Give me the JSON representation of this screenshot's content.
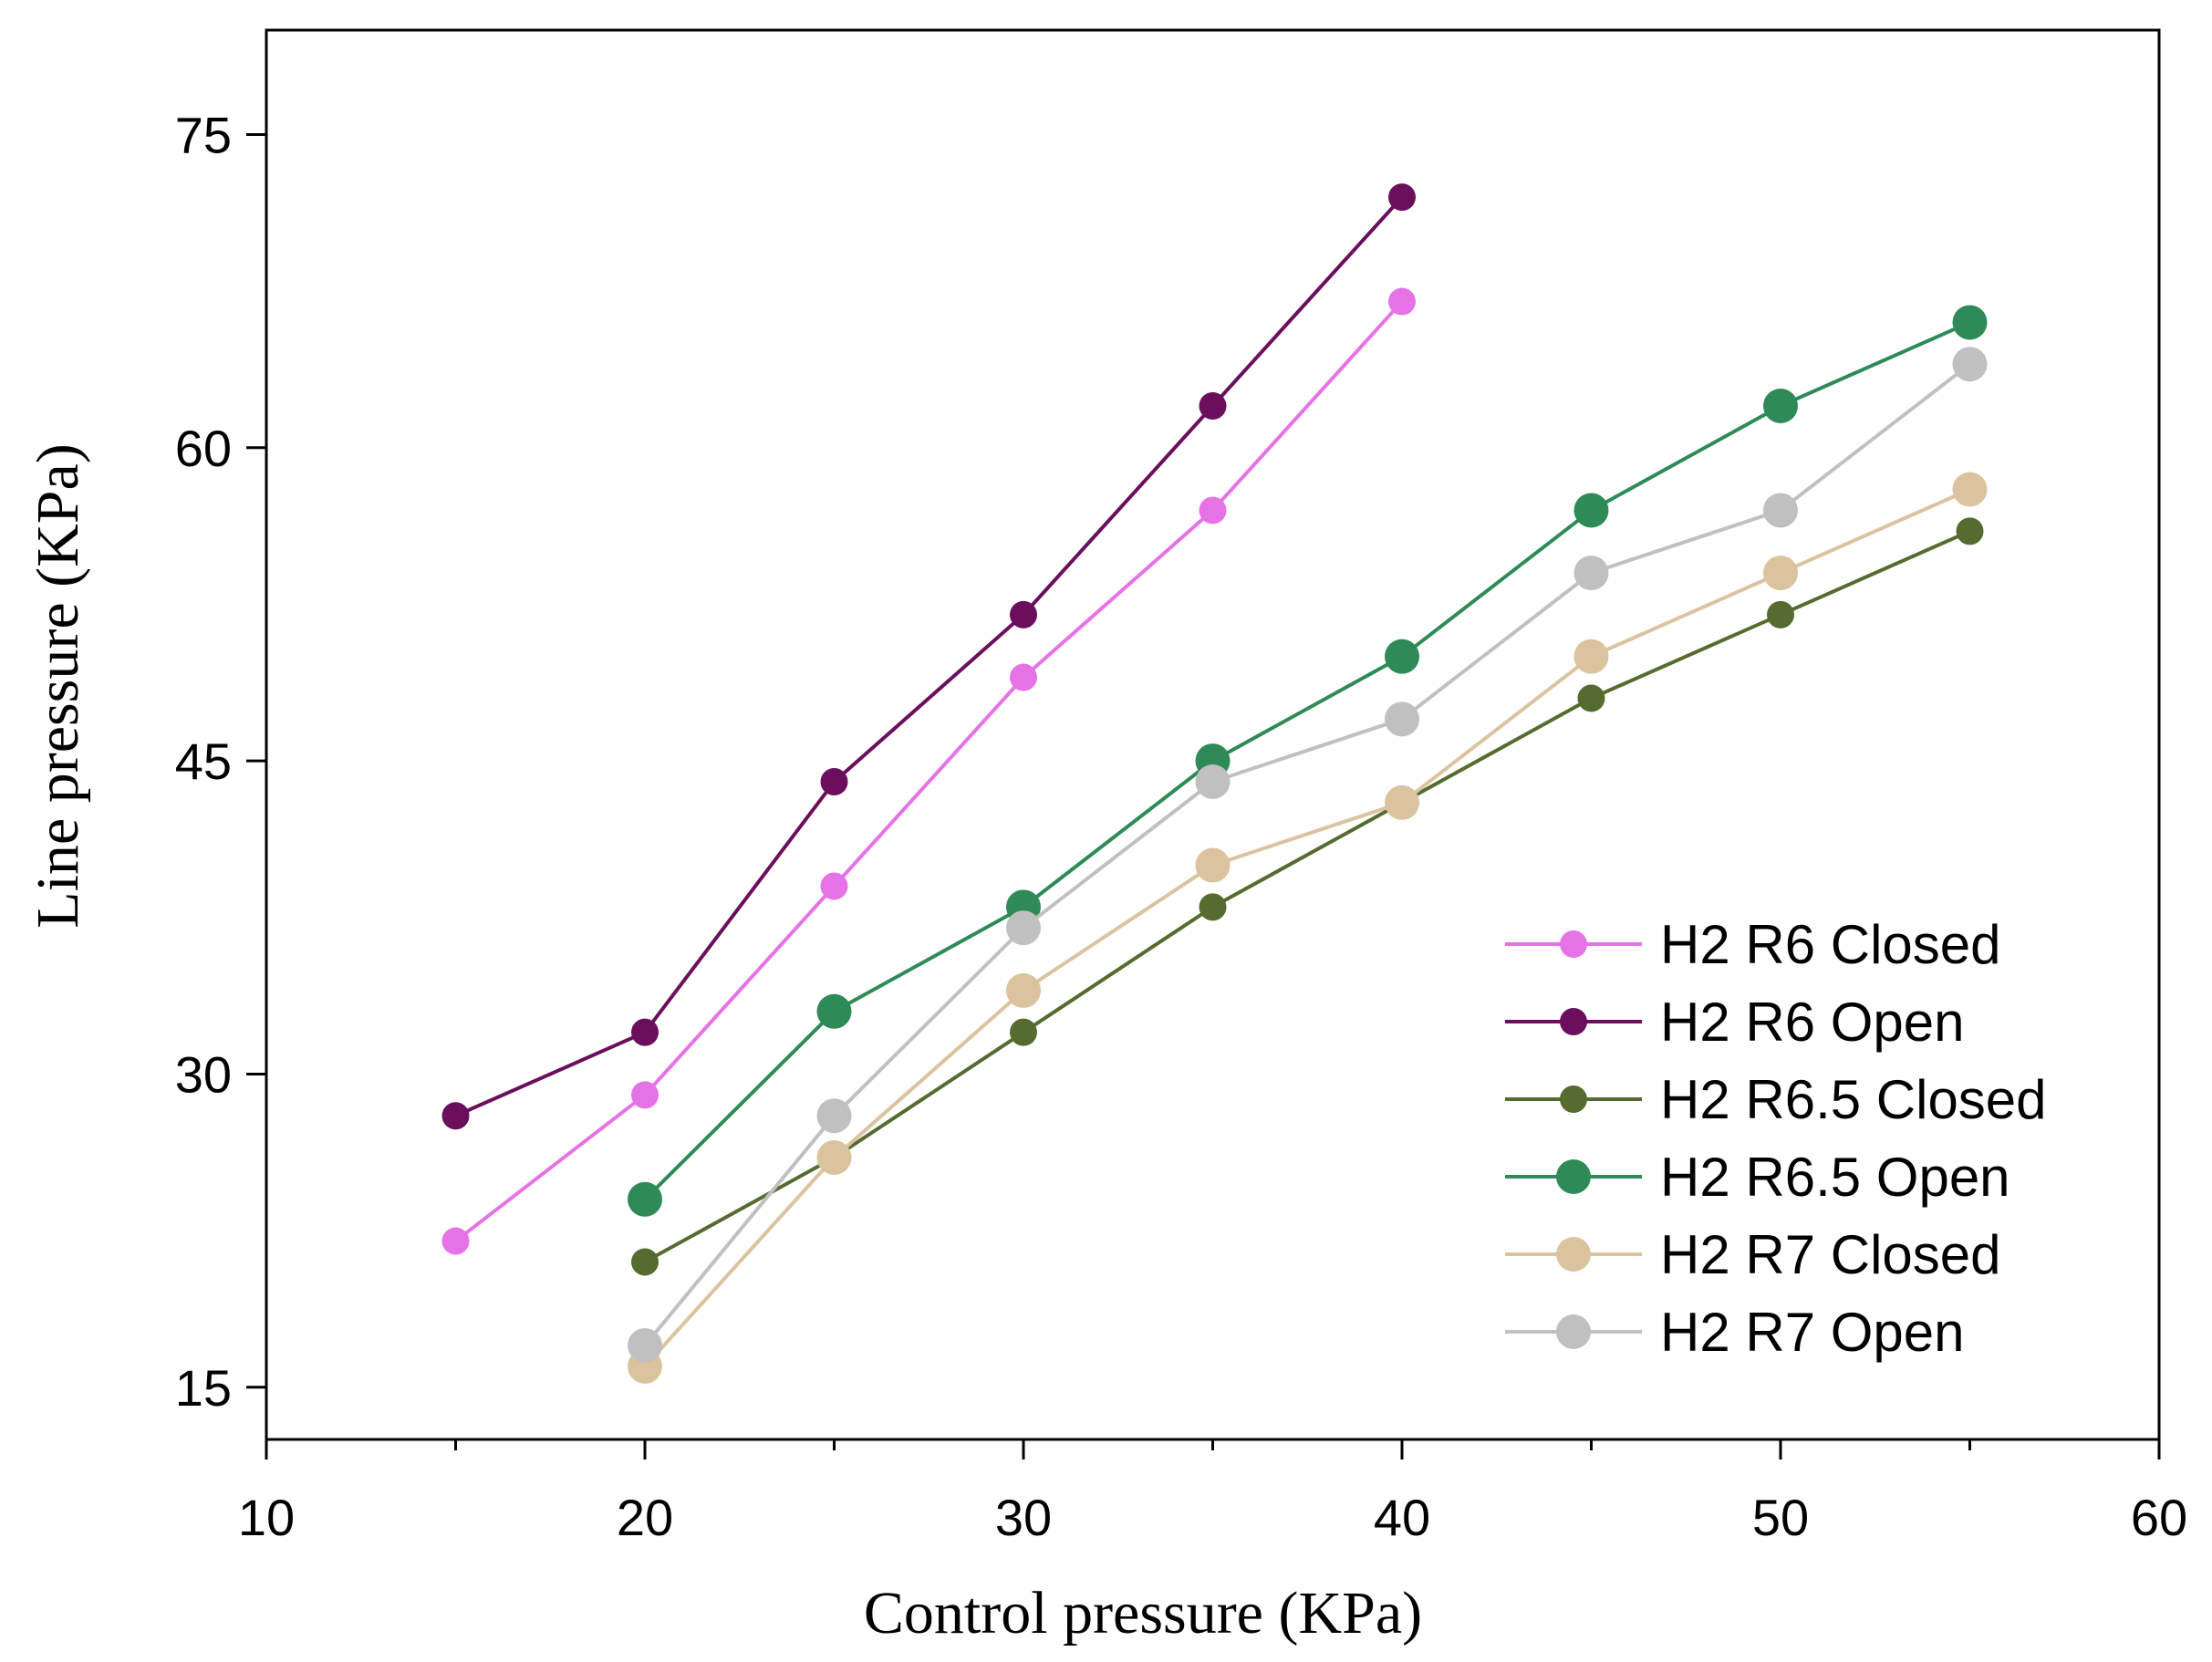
{
  "chart_data": {
    "type": "line",
    "title": "",
    "xlabel": "Control pressure (KPa)",
    "ylabel": "Line pressure (KPa)",
    "xlim": [
      10,
      60
    ],
    "ylim": [
      12.5,
      80
    ],
    "xticks": [
      10,
      20,
      30,
      40,
      50,
      60
    ],
    "yticks": [
      15,
      30,
      45,
      60,
      75
    ],
    "grid": false,
    "legend_position": "lower-right",
    "series": [
      {
        "name": "H2 R6 Closed",
        "color": "#e673e6",
        "marker": "small",
        "x": [
          15,
          20,
          25,
          30,
          35,
          40
        ],
        "values": [
          22,
          29,
          39,
          49,
          57,
          67
        ]
      },
      {
        "name": "H2 R6 Open",
        "color": "#6b0f5c",
        "marker": "small",
        "x": [
          15,
          20,
          25,
          30,
          35,
          40
        ],
        "values": [
          28,
          32,
          44,
          52,
          62,
          72
        ]
      },
      {
        "name": "H2 R6.5 Closed",
        "color": "#556b2f",
        "marker": "small",
        "x": [
          20,
          25,
          30,
          35,
          40,
          45,
          50,
          55
        ],
        "values": [
          21,
          26,
          32,
          38,
          43,
          48,
          52,
          56
        ]
      },
      {
        "name": "H2 R6.5 Open",
        "color": "#2e8b57",
        "marker": "large",
        "x": [
          20,
          25,
          30,
          35,
          40,
          45,
          50,
          55
        ],
        "values": [
          24,
          33,
          38,
          45,
          50,
          57,
          62,
          66
        ]
      },
      {
        "name": "H2 R7 Closed",
        "color": "#dcc3a0",
        "marker": "large",
        "x": [
          20,
          25,
          30,
          35,
          40,
          45,
          50,
          55
        ],
        "values": [
          16,
          26,
          34,
          40,
          43,
          50,
          54,
          58
        ]
      },
      {
        "name": "H2 R7 Open",
        "color": "#c0c0c0",
        "marker": "large",
        "x": [
          20,
          25,
          30,
          35,
          40,
          45,
          50,
          55
        ],
        "values": [
          17,
          28,
          37,
          44,
          47,
          54,
          57,
          64
        ]
      }
    ]
  }
}
